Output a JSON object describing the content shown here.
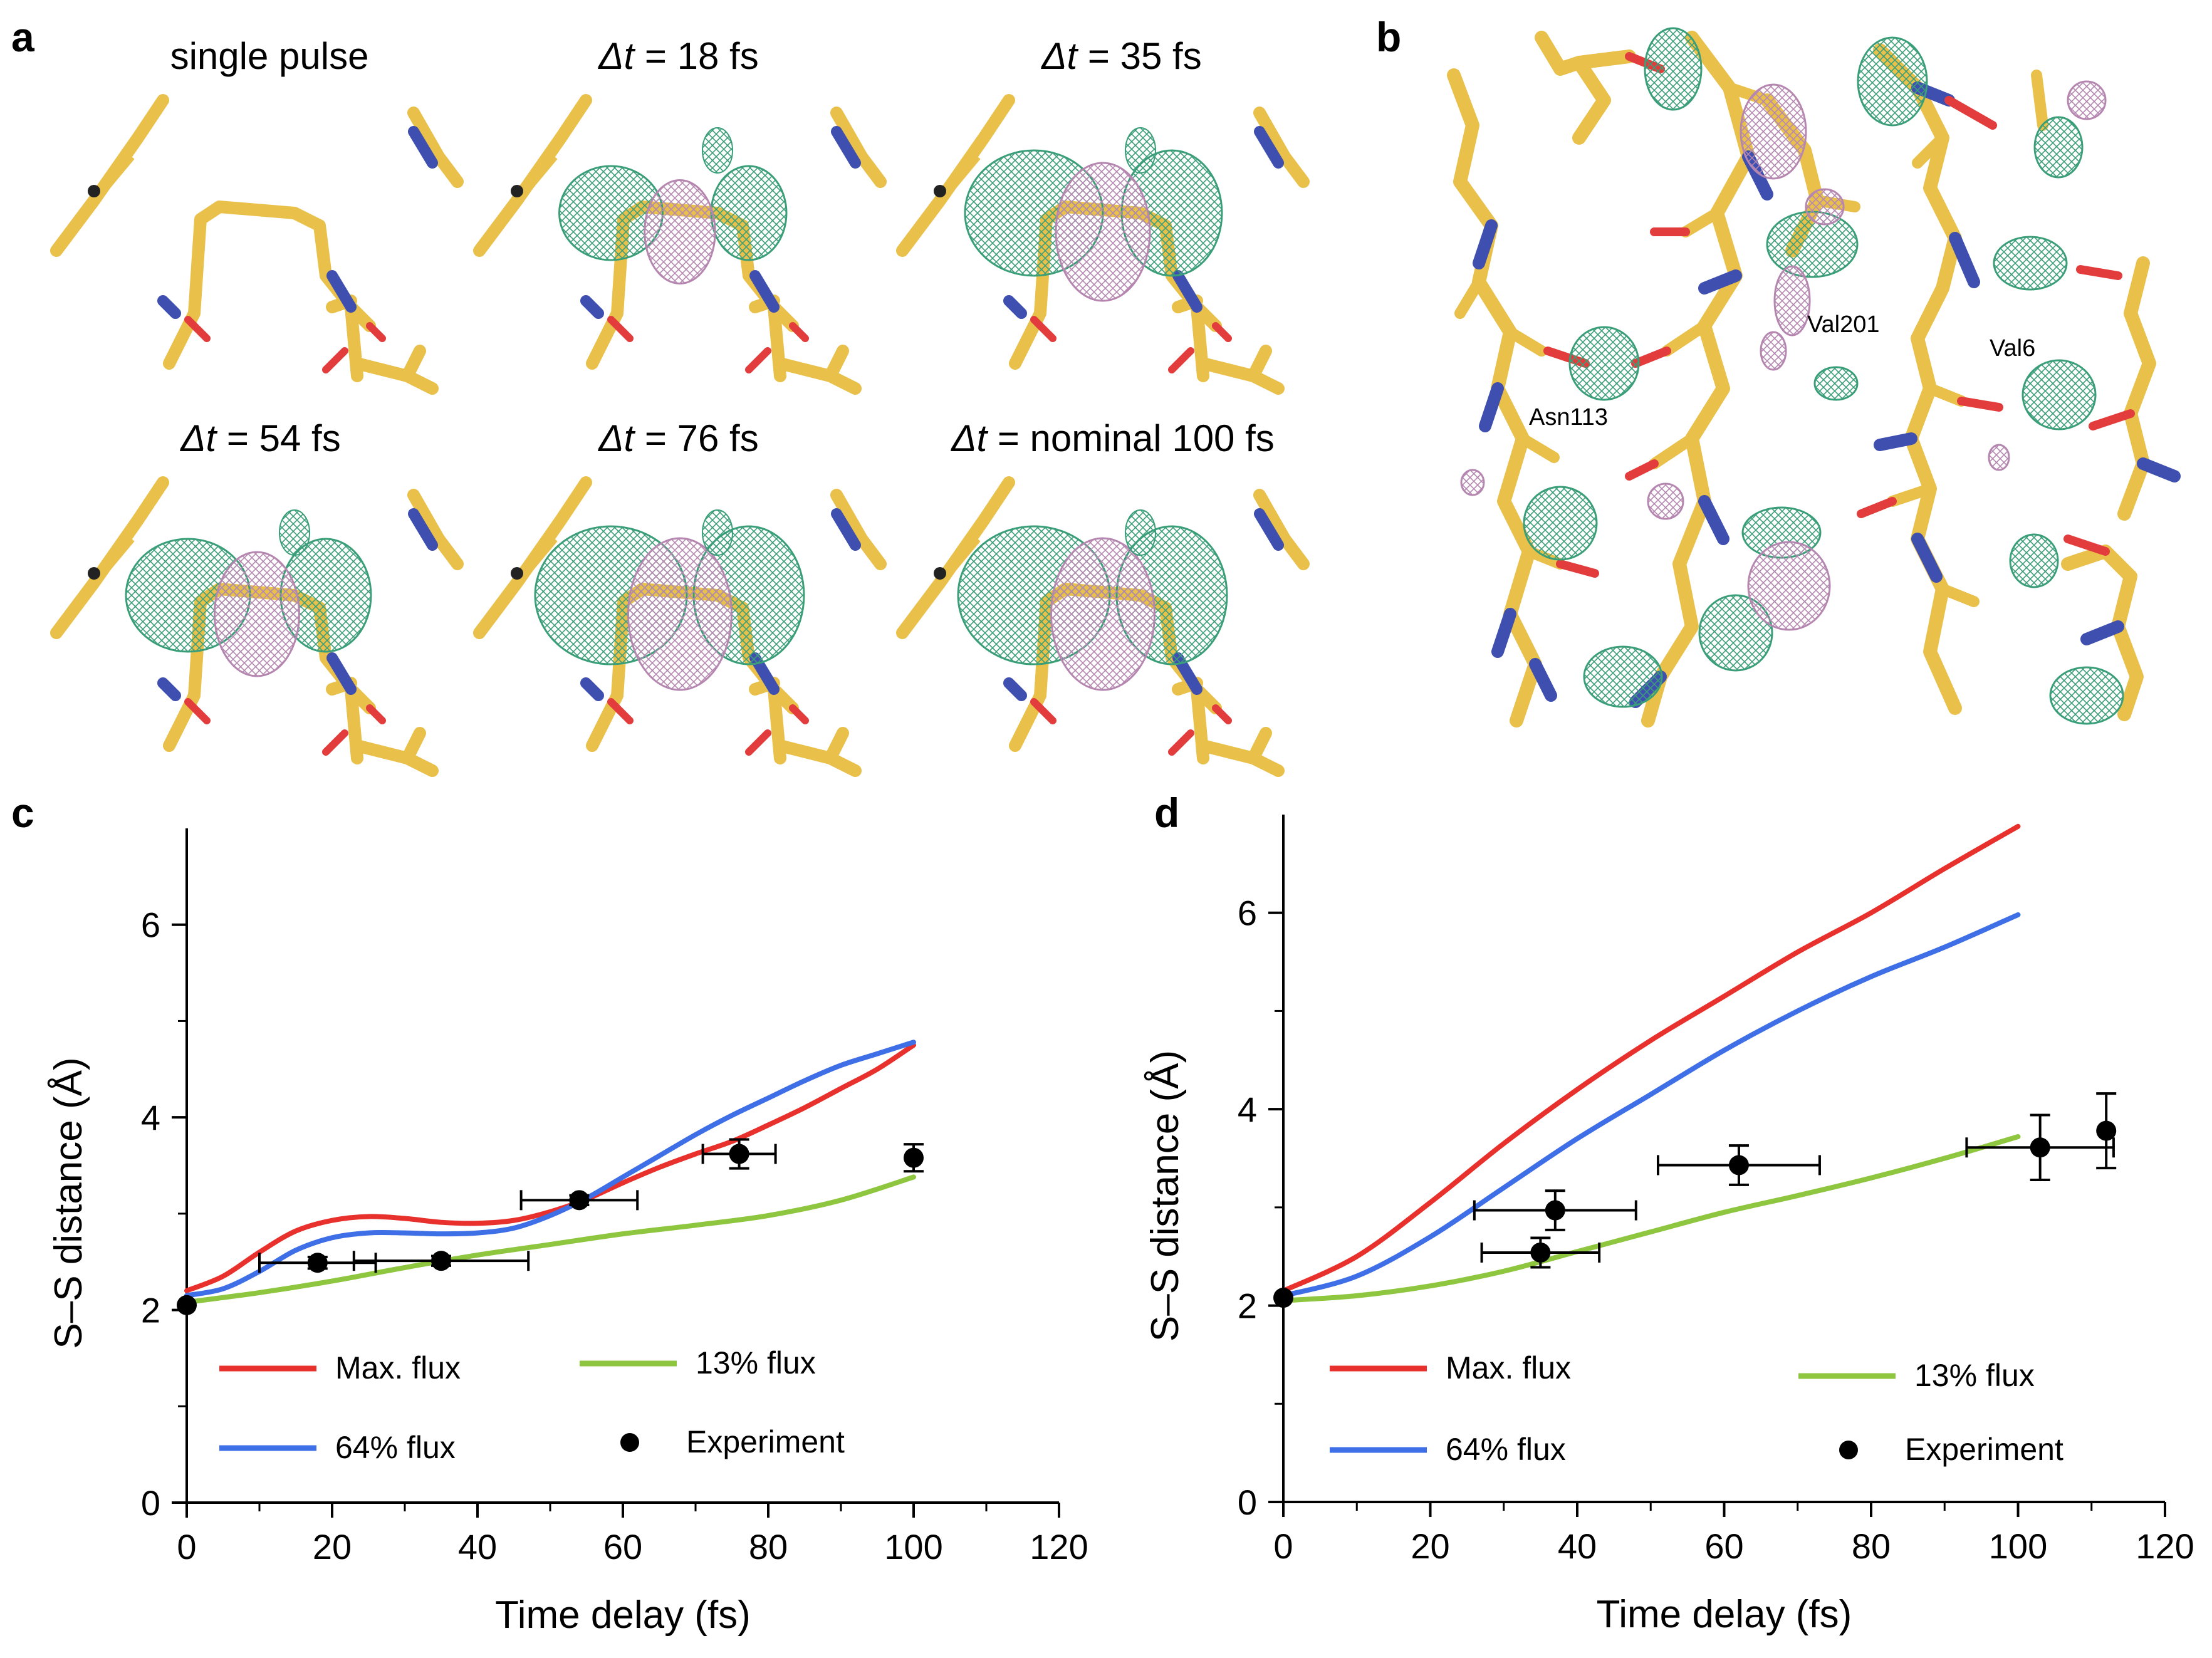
{
  "figure": {
    "panel_a": {
      "letter": "a",
      "subpanels": [
        {
          "delta": "",
          "value": "single pulse"
        },
        {
          "delta": "Δt",
          "value": " = 18 fs"
        },
        {
          "delta": "Δt",
          "value": " = 35 fs"
        },
        {
          "delta": "Δt",
          "value": " = 54 fs"
        },
        {
          "delta": "Δt",
          "value": " = 76 fs"
        },
        {
          "delta": "Δt",
          "value": " = nominal 100 fs"
        }
      ]
    },
    "panel_b": {
      "letter": "b",
      "residues": [
        "Val201",
        "Val6",
        "Asn113"
      ]
    },
    "colors": {
      "stick": "#e9c04a",
      "nitrogen": "#3e4fb0",
      "oxygen": "#e23c3c",
      "positive_density": "#3a9e78",
      "negative_density": "#b586b0"
    }
  },
  "chart_data": [
    {
      "letter": "c",
      "type": "line",
      "xlabel": "Time delay (fs)",
      "ylabel": "S–S distance (Å)",
      "xlim": [
        0,
        120
      ],
      "ylim": [
        0,
        7
      ],
      "xticks": [
        0,
        20,
        40,
        60,
        80,
        100,
        120
      ],
      "yticks": [
        0,
        2,
        4,
        6
      ],
      "series": [
        {
          "name": "Max. flux",
          "color": "#e8302c",
          "x": [
            0,
            5,
            10,
            15,
            20,
            25,
            30,
            35,
            40,
            45,
            50,
            55,
            60,
            65,
            70,
            75,
            80,
            85,
            90,
            95,
            100
          ],
          "y": [
            2.2,
            2.35,
            2.6,
            2.82,
            2.93,
            2.97,
            2.95,
            2.91,
            2.9,
            2.93,
            3.02,
            3.15,
            3.32,
            3.48,
            3.62,
            3.75,
            3.92,
            4.1,
            4.3,
            4.5,
            4.75
          ]
        },
        {
          "name": "64% flux",
          "color": "#3f6fe6",
          "x": [
            0,
            5,
            10,
            15,
            20,
            25,
            30,
            35,
            40,
            45,
            50,
            55,
            60,
            65,
            70,
            75,
            80,
            85,
            90,
            95,
            100
          ],
          "y": [
            2.15,
            2.22,
            2.4,
            2.62,
            2.75,
            2.8,
            2.8,
            2.79,
            2.8,
            2.85,
            2.98,
            3.16,
            3.38,
            3.6,
            3.82,
            4.02,
            4.2,
            4.38,
            4.54,
            4.66,
            4.78
          ]
        },
        {
          "name": "13% flux",
          "color": "#8ec63f",
          "x": [
            0,
            10,
            20,
            30,
            40,
            50,
            60,
            70,
            80,
            90,
            100
          ],
          "y": [
            2.08,
            2.18,
            2.3,
            2.44,
            2.57,
            2.68,
            2.79,
            2.88,
            2.98,
            3.14,
            3.38
          ]
        }
      ],
      "experiment": {
        "name": "Experiment",
        "points": [
          {
            "x": 0,
            "y": 2.05,
            "xerr": 0,
            "yerr": 0.02
          },
          {
            "x": 18,
            "y": 2.49,
            "xerr": 8,
            "yerr": 0.06
          },
          {
            "x": 35,
            "y": 2.51,
            "xerr": 12,
            "yerr": 0.05
          },
          {
            "x": 54,
            "y": 3.14,
            "xerr": 8,
            "yerr": 0.05
          },
          {
            "x": 76,
            "y": 3.62,
            "xerr": 5,
            "yerr": 0.15
          },
          {
            "x": 100,
            "y": 3.58,
            "xerr": 0,
            "yerr": 0.14
          }
        ]
      },
      "legend": [
        "Max. flux",
        "13% flux",
        "64% flux",
        "Experiment"
      ]
    },
    {
      "letter": "d",
      "type": "line",
      "xlabel": "Time delay (fs)",
      "ylabel": "S–S distance (Å)",
      "xlim": [
        0,
        120
      ],
      "ylim": [
        0,
        7
      ],
      "xticks": [
        0,
        20,
        40,
        60,
        80,
        100,
        120
      ],
      "yticks": [
        0,
        2,
        4,
        6
      ],
      "series": [
        {
          "name": "Max. flux",
          "color": "#e8302c",
          "x": [
            0,
            10,
            20,
            30,
            40,
            50,
            60,
            70,
            80,
            90,
            100
          ],
          "y": [
            2.15,
            2.5,
            3.05,
            3.65,
            4.2,
            4.7,
            5.15,
            5.6,
            6.0,
            6.45,
            6.88
          ]
        },
        {
          "name": "64% flux",
          "color": "#3f6fe6",
          "x": [
            0,
            10,
            20,
            30,
            40,
            50,
            60,
            70,
            80,
            90,
            100
          ],
          "y": [
            2.1,
            2.3,
            2.7,
            3.2,
            3.7,
            4.15,
            4.6,
            5.0,
            5.35,
            5.65,
            5.98
          ]
        },
        {
          "name": "13% flux",
          "color": "#8ec63f",
          "x": [
            0,
            10,
            20,
            30,
            40,
            50,
            60,
            70,
            80,
            90,
            100
          ],
          "y": [
            2.05,
            2.1,
            2.2,
            2.35,
            2.55,
            2.75,
            2.95,
            3.12,
            3.3,
            3.5,
            3.72
          ]
        }
      ],
      "experiment": {
        "name": "Experiment",
        "points": [
          {
            "x": 0,
            "y": 2.08,
            "xerr": 0,
            "yerr": 0.02
          },
          {
            "x": 35,
            "y": 2.54,
            "xerr": 8,
            "yerr": 0.15
          },
          {
            "x": 37,
            "y": 2.97,
            "xerr": 11,
            "yerr": 0.2
          },
          {
            "x": 62,
            "y": 3.43,
            "xerr": 11,
            "yerr": 0.2
          },
          {
            "x": 103,
            "y": 3.61,
            "xerr": 10,
            "yerr": 0.33
          },
          {
            "x": 112,
            "y": 3.78,
            "xerr": 0,
            "yerr": 0.38
          }
        ]
      },
      "legend": [
        "Max. flux",
        "13% flux",
        "64% flux",
        "Experiment"
      ]
    }
  ]
}
